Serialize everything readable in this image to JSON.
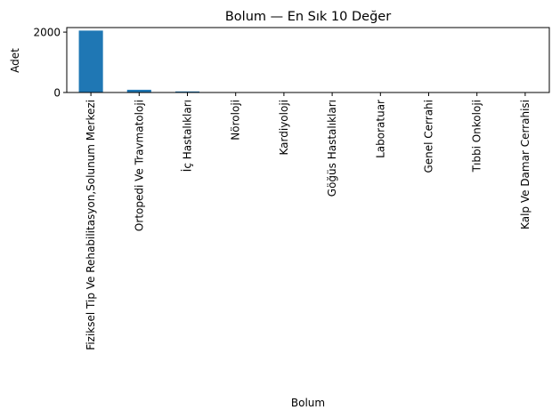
{
  "chart_data": {
    "type": "bar",
    "title": "Bolum — En Sık 10 Değer",
    "xlabel": "Bolum",
    "ylabel": "Adet",
    "categories": [
      "Fiziksel Tip Ve Rehabilitasyon,Solunum Merkezi",
      "Ortopedi Ve Travmatoloji",
      "İç Hastalıkları",
      "Nöroloji",
      "Kardiyoloji",
      "Göğüs Hastalıkları",
      "Laboratuar",
      "Genel Cerrahi",
      "Tıbbi Onkoloji",
      "Kalp Ve Damar Cerrahisi"
    ],
    "values": [
      2050,
      90,
      35,
      8,
      6,
      5,
      4,
      3,
      2,
      2
    ],
    "ylim": [
      0,
      2150
    ],
    "yticks": [
      0,
      2000
    ],
    "grid": false,
    "legend": "none",
    "bar_color": "#1f77b4"
  }
}
